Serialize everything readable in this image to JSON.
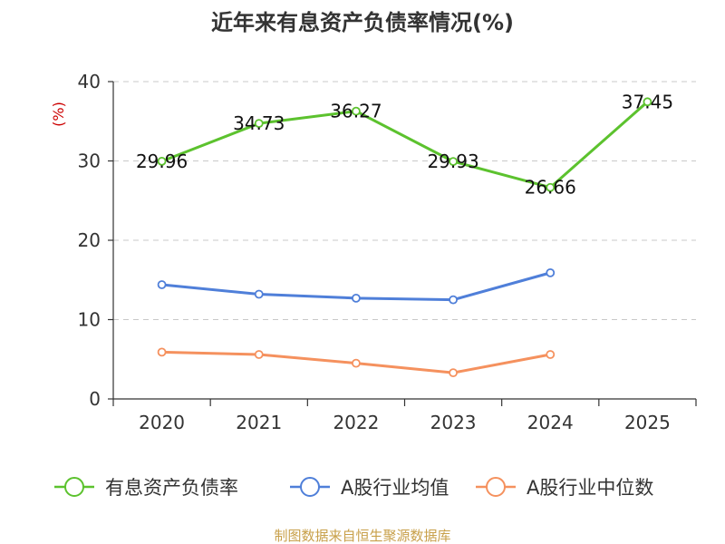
{
  "chart_data": {
    "type": "line",
    "title": "近年来有息资产负债率情况(%)",
    "ylabel": "(%)",
    "xlabel": "",
    "categories": [
      "2020",
      "2021",
      "2022",
      "2023",
      "2024",
      "2025"
    ],
    "ylim": [
      0,
      40
    ],
    "yticks": [
      0,
      10,
      20,
      30,
      40
    ],
    "grid": true,
    "legend_position": "bottom",
    "series": [
      {
        "name": "有息资产负债率",
        "color": "#5cc22e",
        "values": [
          29.96,
          34.73,
          36.27,
          29.93,
          26.66,
          37.45
        ],
        "labels": [
          "29.96",
          "34.73",
          "36.27",
          "29.93",
          "26.66",
          "37.45"
        ]
      },
      {
        "name": "A股行业均值",
        "color": "#4f7fd9",
        "values": [
          14.4,
          13.2,
          12.7,
          12.5,
          15.9,
          null
        ]
      },
      {
        "name": "A股行业中位数",
        "color": "#f5915e",
        "values": [
          5.9,
          5.6,
          4.5,
          3.3,
          5.6,
          null
        ]
      }
    ],
    "source": "制图数据来自恒生聚源数据库"
  }
}
